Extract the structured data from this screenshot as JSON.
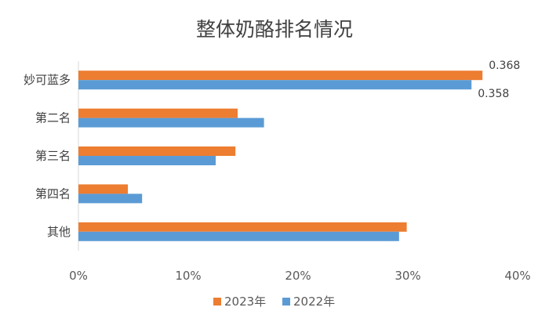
{
  "chart_data": {
    "type": "bar",
    "orientation": "horizontal",
    "title": "整体奶酪排名情况",
    "categories": [
      "妙可蓝多",
      "第二名",
      "第三名",
      "第四名",
      "其他"
    ],
    "series": [
      {
        "name": "2023年",
        "color": "#ED7D31",
        "values": [
          0.368,
          0.145,
          0.143,
          0.045,
          0.299
        ]
      },
      {
        "name": "2022年",
        "color": "#5B9BD5",
        "values": [
          0.358,
          0.169,
          0.125,
          0.058,
          0.292
        ]
      }
    ],
    "xlim": [
      0,
      0.4
    ],
    "x_ticks": [
      "0%",
      "10%",
      "20%",
      "30%",
      "40%"
    ],
    "data_labels": [
      {
        "category": "妙可蓝多",
        "series": "2023年",
        "text": "0.368"
      },
      {
        "category": "妙可蓝多",
        "series": "2022年",
        "text": "0.358"
      }
    ],
    "grid": false,
    "legend_position": "bottom"
  }
}
